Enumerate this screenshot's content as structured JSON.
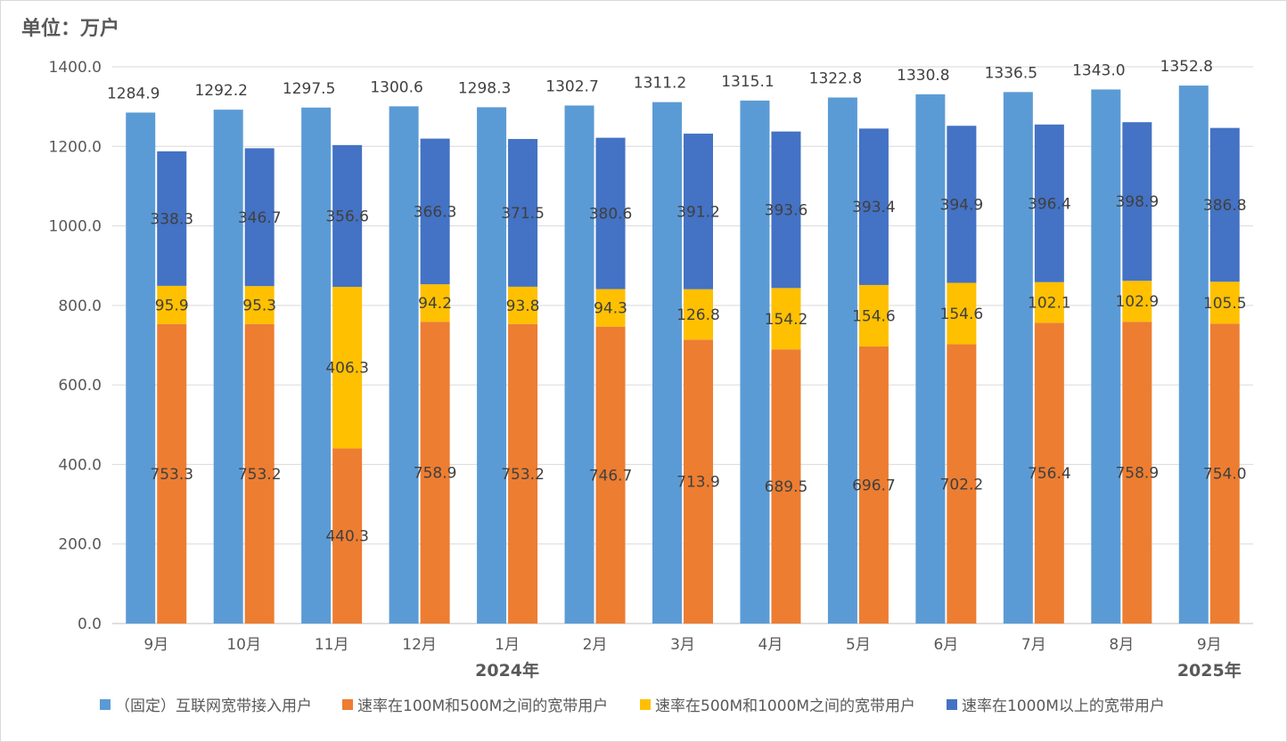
{
  "chart_data": {
    "type": "bar",
    "unit_label": "单位：万户",
    "categories": [
      "9月",
      "10月",
      "11月",
      "12月",
      "1月",
      "2月",
      "3月",
      "4月",
      "5月",
      "6月",
      "7月",
      "8月",
      "9月"
    ],
    "year_groups": [
      {
        "label": "2024年",
        "center_category_index": 4
      },
      {
        "label": "2025年",
        "center_category_index": 12
      }
    ],
    "ylim": [
      0,
      1400
    ],
    "yticks": [
      0,
      200,
      400,
      600,
      800,
      1000,
      1200,
      1400
    ],
    "ytick_labels": [
      "0.0",
      "200.0",
      "400.0",
      "600.0",
      "800.0",
      "1000.0",
      "1200.0",
      "1400.0"
    ],
    "grid": true,
    "legend_position": "bottom",
    "total_series": {
      "name": "（固定）互联网宽带接入用户",
      "color": "#5B9BD5",
      "values": [
        1284.9,
        1292.2,
        1297.5,
        1300.6,
        1298.3,
        1302.7,
        1311.2,
        1315.1,
        1322.8,
        1330.8,
        1336.5,
        1343.0,
        1352.8
      ],
      "labels": [
        "1284.9",
        "1292.2",
        "1297.5",
        "1300.6",
        "1298.3",
        "1302.7",
        "1311.2",
        "1315.1",
        "1322.8",
        "1330.8",
        "1336.5",
        "1343.0",
        "1352.8"
      ]
    },
    "stacked_series": [
      {
        "name": "速率在100M和500M之间的宽带用户",
        "color": "#ED7D31",
        "values": [
          753.3,
          753.2,
          440.3,
          758.9,
          753.2,
          746.7,
          713.9,
          689.5,
          696.7,
          702.2,
          756.4,
          758.9,
          754.0
        ],
        "labels": [
          "753.3",
          "753.2",
          "440.3",
          "758.9",
          "753.2",
          "746.7",
          "713.9",
          "689.5",
          "696.7",
          "702.2",
          "756.4",
          "758.9",
          "754.0"
        ]
      },
      {
        "name": "速率在500M和1000M之间的宽带用户",
        "color": "#FFC000",
        "values": [
          95.9,
          95.3,
          406.3,
          94.2,
          93.8,
          94.3,
          126.8,
          154.2,
          154.6,
          154.6,
          102.1,
          102.9,
          105.5
        ],
        "labels": [
          "95.9",
          "95.3",
          "406.3",
          "94.2",
          "93.8",
          "94.3",
          "126.8",
          "154.2",
          "154.6",
          "154.6",
          "102.1",
          "102.9",
          "105.5"
        ]
      },
      {
        "name": "速率在1000M以上的宽带用户",
        "color": "#4472C4",
        "values": [
          338.3,
          346.7,
          356.6,
          366.3,
          371.5,
          380.6,
          391.2,
          393.6,
          393.4,
          394.9,
          396.4,
          398.9,
          386.8
        ],
        "labels": [
          "338.3",
          "346.7",
          "356.6",
          "366.3",
          "371.5",
          "380.6",
          "391.2",
          "393.6",
          "393.4",
          "394.9",
          "396.4",
          "398.9",
          "386.8"
        ]
      }
    ]
  }
}
